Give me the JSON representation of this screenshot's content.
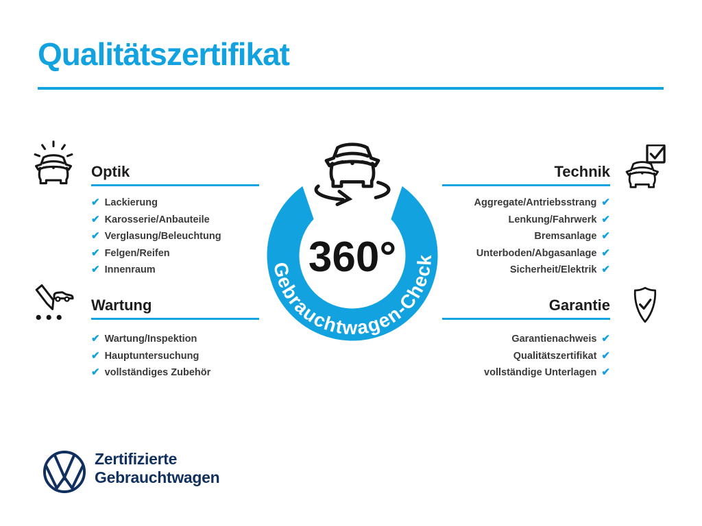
{
  "page_title": "Qualitätszertifikat",
  "badge": {
    "degree_label": "360°",
    "ring_label": "Gebrauchtwagen-Check",
    "car_icon": "rotating-car-icon"
  },
  "sections": [
    {
      "title": "Optik",
      "icon": "sparkling-car-icon",
      "items": [
        "Lackierung",
        "Karosserie/Anbauteile",
        "Verglasung/Beleuchtung",
        "Felgen/Reifen",
        "Innenraum"
      ]
    },
    {
      "title": "Technik",
      "icon": "car-checklist-icon",
      "items": [
        "Aggregate/Antriebsstrang",
        "Lenkung/Fahrwerk",
        "Bremsanlage",
        "Unterboden/Abgasanlage",
        "Sicherheit/Elektrik"
      ]
    },
    {
      "title": "Wartung",
      "icon": "service-pen-car-icon",
      "items": [
        "Wartung/Inspektion",
        "Hauptuntersuchung",
        "vollständiges Zubehör"
      ]
    },
    {
      "title": "Garantie",
      "icon": "shield-check-icon",
      "items": [
        "Garantienachweis",
        "Qualitätszertifikat",
        "vollständige Unterlagen"
      ]
    }
  ],
  "footer": {
    "logo_icon": "vw-logo",
    "line1": "Zertifizierte",
    "line2": "Gebrauchtwagen"
  },
  "check_glyph": "✔",
  "colors": {
    "accent_blue": "#11a2df",
    "navy": "#11305f",
    "heading": "#1c1c1c",
    "body_text": "#3a3a3a",
    "icon_black": "#161616",
    "ring_text": "#ffffff",
    "degree_text": "#141414"
  }
}
